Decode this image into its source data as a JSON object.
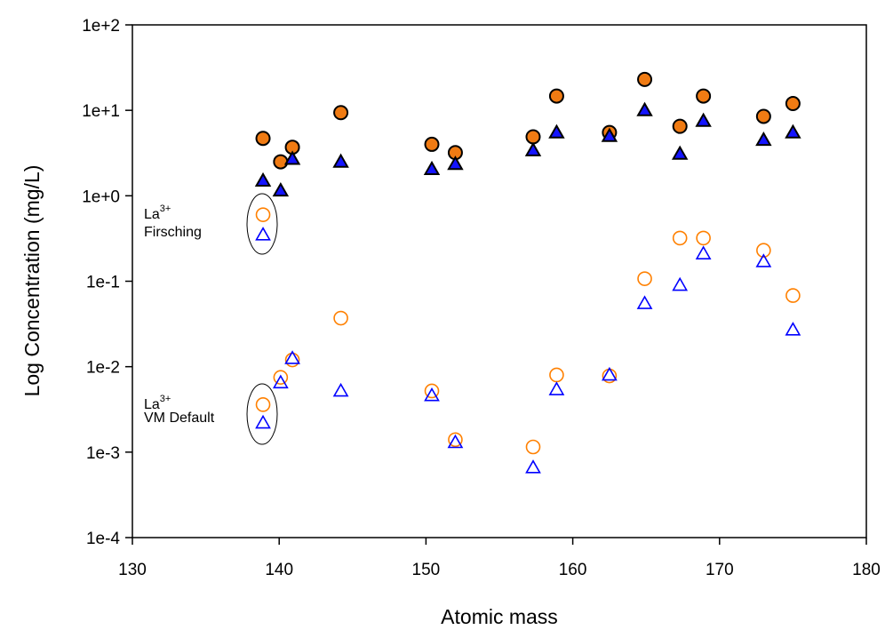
{
  "chart_data": {
    "type": "scatter",
    "title": "",
    "xlabel": "Atomic mass",
    "ylabel": "Log Concentration (mg/L)",
    "xlim": [
      130,
      180
    ],
    "ylim": [
      0.0001,
      100
    ],
    "yscale": "log",
    "grid": false,
    "x_ticks": [
      "130",
      "140",
      "150",
      "160",
      "170",
      "180"
    ],
    "y_ticks": [
      "1e-4",
      "1e-3",
      "1e-2",
      "1e-1",
      "1e+0",
      "1e+1",
      "1e+2"
    ],
    "colors": {
      "orange": "#ff8000",
      "blue": "#0000ff",
      "outline": "#000000"
    },
    "series": [
      {
        "marker": "filled-circle",
        "color": "#f07b13",
        "x": [
          138.9,
          140.1,
          140.9,
          144.2,
          150.4,
          152.0,
          157.3,
          158.9,
          162.5,
          164.9,
          167.3,
          168.9,
          173.0,
          175.0
        ],
        "y": [
          4.7,
          2.5,
          3.7,
          9.4,
          4.0,
          3.2,
          4.9,
          14.7,
          5.5,
          23.0,
          6.5,
          14.7,
          8.5,
          12.0
        ]
      },
      {
        "marker": "filled-triangle",
        "color": "#1414ff",
        "x": [
          138.9,
          140.1,
          140.9,
          144.2,
          150.4,
          152.0,
          157.3,
          158.9,
          162.5,
          164.9,
          167.3,
          168.9,
          173.0,
          175.0
        ],
        "y": [
          1.5,
          1.15,
          2.7,
          2.5,
          2.05,
          2.35,
          3.4,
          5.5,
          5.0,
          10.0,
          3.1,
          7.5,
          4.5,
          5.5
        ]
      },
      {
        "marker": "open-circle",
        "color": "#ff8000",
        "x": [
          140.1,
          140.9,
          144.2,
          150.4,
          152.0,
          157.3,
          158.9,
          162.5,
          164.9,
          167.3,
          168.9,
          173.0,
          175.0
        ],
        "y": [
          0.0075,
          0.012,
          0.037,
          0.0052,
          0.0014,
          0.00115,
          0.008,
          0.0078,
          0.107,
          0.32,
          0.32,
          0.23,
          0.068
        ]
      },
      {
        "marker": "open-triangle",
        "color": "#0000ff",
        "x": [
          140.1,
          140.9,
          144.2,
          150.4,
          152.0,
          157.3,
          158.9,
          162.5,
          164.9,
          167.3,
          168.9,
          173.0,
          175.0
        ],
        "y": [
          0.0065,
          0.0125,
          0.0052,
          0.0046,
          0.0013,
          0.00066,
          0.0054,
          0.008,
          0.055,
          0.09,
          0.21,
          0.17,
          0.027
        ]
      }
    ],
    "annotations": [
      {
        "line1": "La",
        "sup": "3+",
        "line2": "Firsching",
        "x": 138.9,
        "circle_y": 0.6,
        "triangle_y": 0.35
      },
      {
        "line1": "La",
        "sup": "3+",
        "line2": "VM Default",
        "x": 138.9,
        "circle_y": 0.0036,
        "triangle_y": 0.0022
      }
    ]
  }
}
